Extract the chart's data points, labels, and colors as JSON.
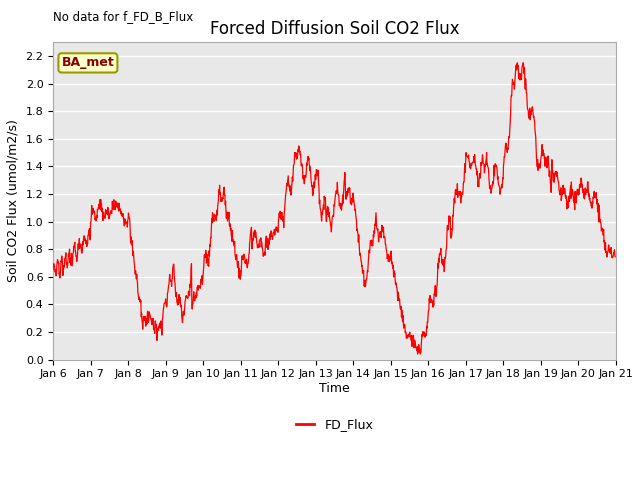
{
  "title": "Forced Diffusion Soil CO2 Flux",
  "xlabel": "Time",
  "ylabel": "Soil CO2 Flux (umol/m2/s)",
  "top_left_text": "No data for f_FD_B_Flux",
  "legend_label": "FD_Flux",
  "line_color": "#FF0000",
  "fig_facecolor": "#FFFFFF",
  "plot_bg_color": "#E8E8E8",
  "ylim": [
    0.0,
    2.3
  ],
  "yticks": [
    0.0,
    0.2,
    0.4,
    0.6,
    0.8,
    1.0,
    1.2,
    1.4,
    1.6,
    1.8,
    2.0,
    2.2
  ],
  "box_label": "BA_met",
  "box_facecolor": "#FFFFCC",
  "box_edgecolor": "#999900",
  "box_textcolor": "#880000",
  "tick_fontsize": 8,
  "label_fontsize": 9,
  "title_fontsize": 12,
  "figsize": [
    6.4,
    4.8
  ],
  "dpi": 100
}
